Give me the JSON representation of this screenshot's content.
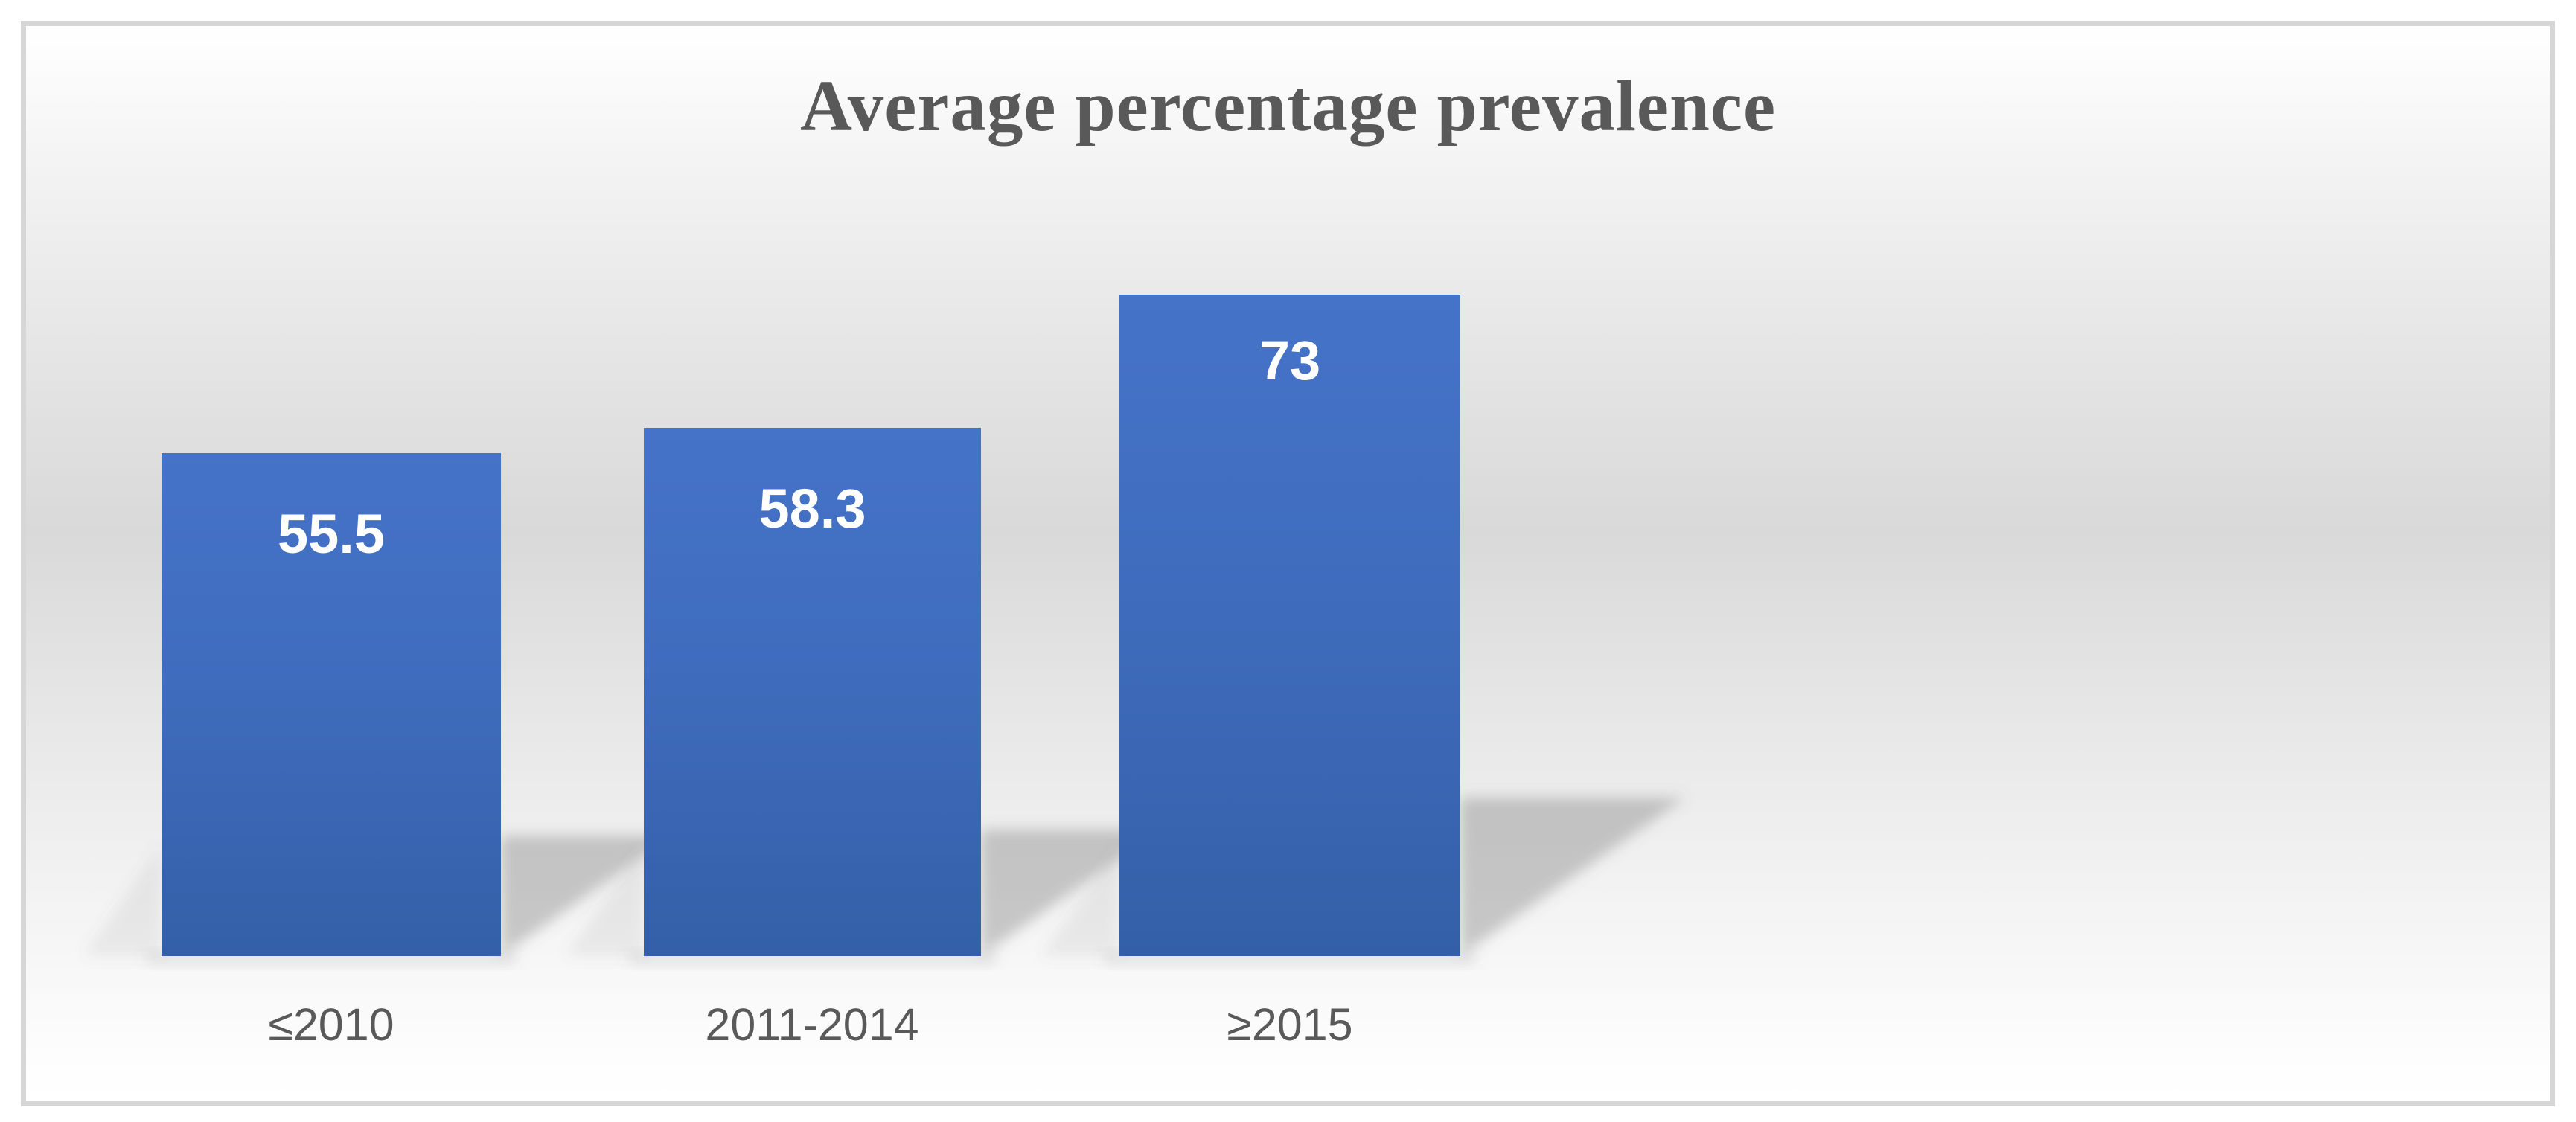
{
  "chart_data": {
    "type": "bar",
    "title": "Average percentage prevalence",
    "categories": [
      "≤2010",
      "2011-2014",
      "≥2015"
    ],
    "values": [
      55.5,
      58.3,
      73
    ],
    "data_labels": [
      "55.5",
      "58.3",
      "73"
    ],
    "xlabel": "",
    "ylabel": "",
    "legend": "none",
    "gridlines": false,
    "axes_visible": false,
    "data_label_position": "inside-top",
    "colors": {
      "bar_gradient_top": "#4573c8",
      "bar_gradient_bottom": "#345fa8",
      "data_label_text": "#ffffff",
      "title_text": "#595959",
      "category_text": "#595959",
      "frame_border": "#d6d6d6",
      "background_light": "#ffffff",
      "background_mid_gray": "#d9d9d9",
      "shadow_gray": "#6b6b6b"
    }
  }
}
